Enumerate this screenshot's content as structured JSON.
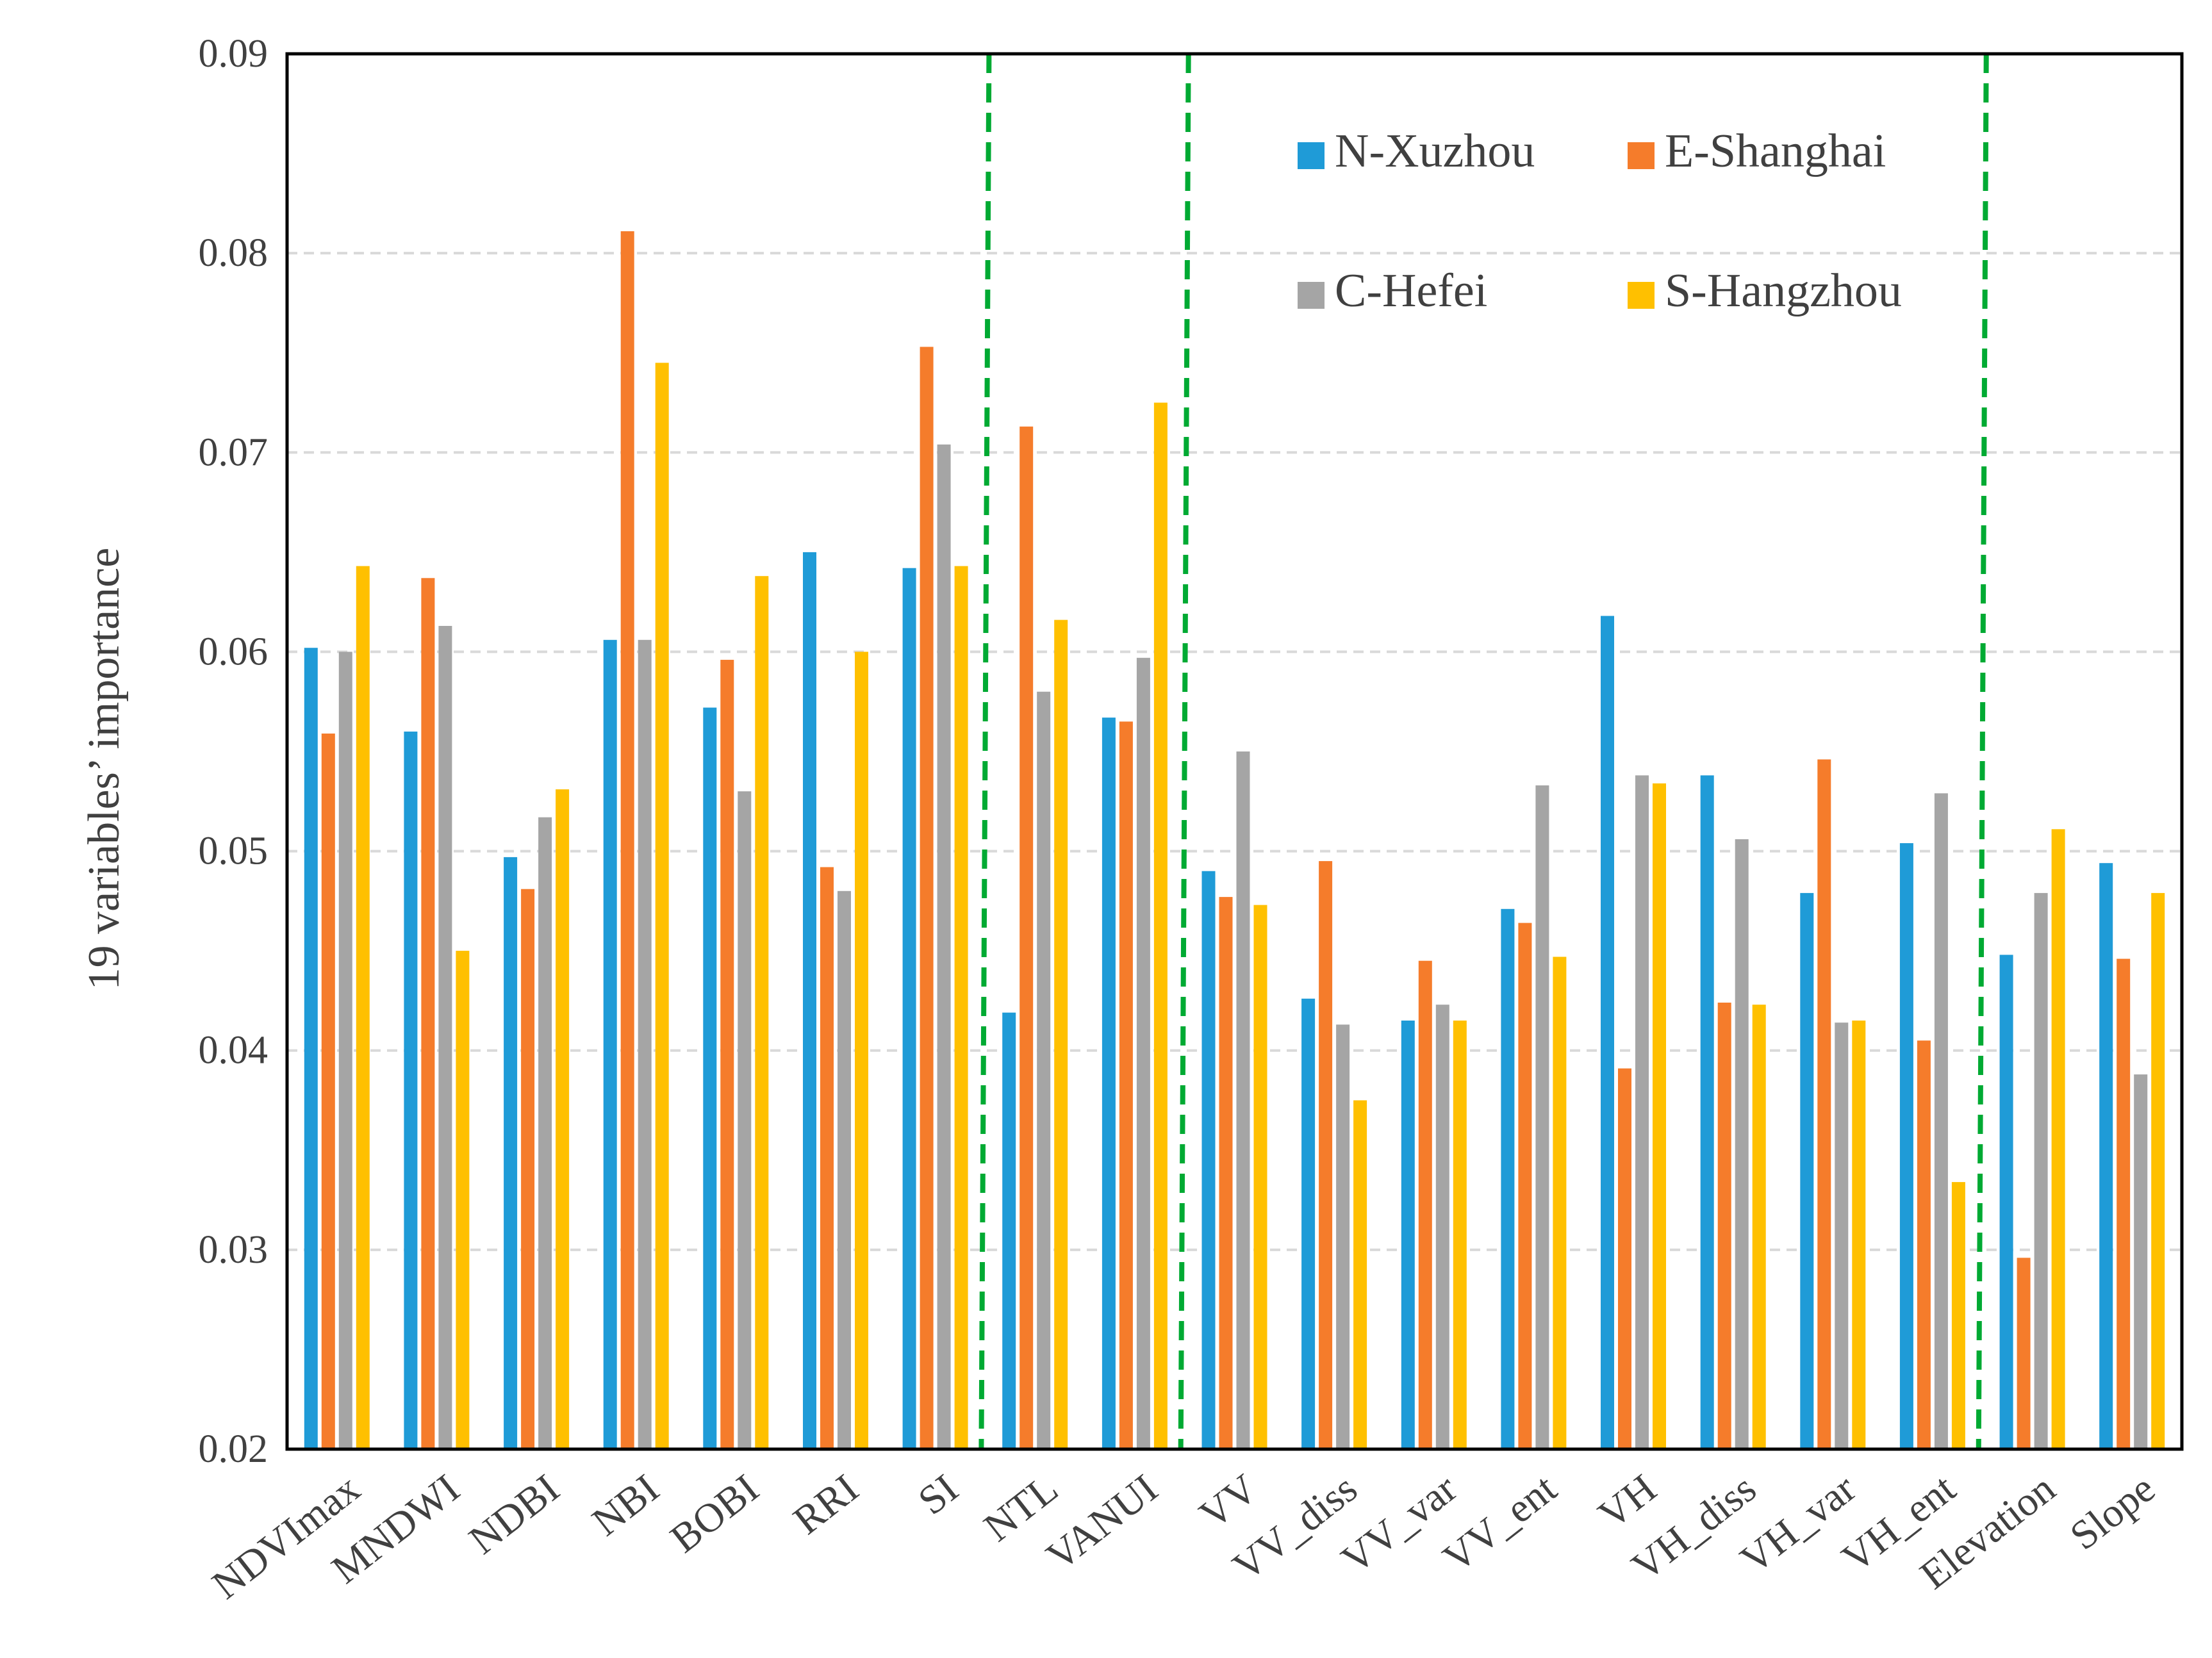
{
  "chart_data": {
    "type": "bar",
    "title": "",
    "xlabel": "",
    "ylabel": "19 variables’ importance",
    "ylim": [
      0.02,
      0.09
    ],
    "yticks": [
      "0.02",
      "0.03",
      "0.04",
      "0.05",
      "0.06",
      "0.07",
      "0.08",
      "0.09"
    ],
    "grid": true,
    "legend_position": "top-right",
    "categories": [
      "NDVImax",
      "MNDWI",
      "NDBI",
      "NBI",
      "BOBI",
      "RRI",
      "SI",
      "NTL",
      "VANUI",
      "VV",
      "VV_diss",
      "VV_var",
      "VV_ent",
      "VH",
      "VH_diss",
      "VH_var",
      "VH_ent",
      "Elevation",
      "Slope"
    ],
    "series": [
      {
        "name": "N-Xuzhou",
        "color": "#1f9bd7",
        "values": [
          0.0602,
          0.056,
          0.0497,
          0.0606,
          0.0572,
          0.065,
          0.0642,
          0.0419,
          0.0567,
          0.049,
          0.0426,
          0.0415,
          0.0471,
          0.0618,
          0.0538,
          0.0479,
          0.0504,
          0.0448,
          0.0494
        ]
      },
      {
        "name": "E-Shanghai",
        "color": "#f57c2b",
        "values": [
          0.0559,
          0.0637,
          0.0481,
          0.0811,
          0.0596,
          0.0492,
          0.0753,
          0.0713,
          0.0565,
          0.0477,
          0.0495,
          0.0445,
          0.0464,
          0.0391,
          0.0424,
          0.0546,
          0.0405,
          0.0296,
          0.0446
        ]
      },
      {
        "name": "C-Hefei",
        "color": "#a5a5a5",
        "values": [
          0.06,
          0.0613,
          0.0517,
          0.0606,
          0.053,
          0.048,
          0.0704,
          0.058,
          0.0597,
          0.055,
          0.0413,
          0.0423,
          0.0533,
          0.0538,
          0.0506,
          0.0414,
          0.0529,
          0.0479,
          0.0388
        ]
      },
      {
        "name": "S-Hangzhou",
        "color": "#ffc000",
        "values": [
          0.0643,
          0.045,
          0.0531,
          0.0745,
          0.0638,
          0.06,
          0.0643,
          0.0616,
          0.0725,
          0.0473,
          0.0375,
          0.0415,
          0.0447,
          0.0534,
          0.0423,
          0.0415,
          0.0334,
          0.0511,
          0.0479
        ]
      }
    ],
    "separators_after_category": [
      "SI",
      "VANUI",
      "VH_ent"
    ],
    "separator_color": "#00aa33",
    "grid_color": "#d9d9d9"
  }
}
